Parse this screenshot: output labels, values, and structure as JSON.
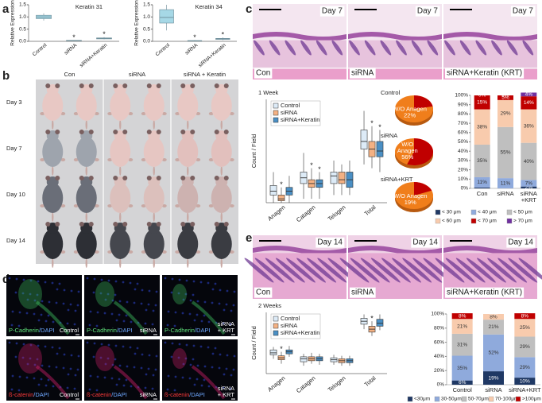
{
  "panel_labels": [
    "a",
    "b",
    "c",
    "d",
    "e"
  ],
  "a": [
    {
      "title": "Keratin 31",
      "ylabel": "Relative Expression",
      "ylim": [
        0,
        1.5
      ],
      "yticks": [
        {
          "value": 0,
          "label": "0.0"
        },
        {
          "value": 0.5,
          "label": "0.5"
        },
        {
          "value": 1,
          "label": "1.0"
        },
        {
          "value": 1.5,
          "label": "1.5"
        }
      ],
      "categories": [
        "Control",
        "siRNA",
        "siRNA+Keratin"
      ],
      "color": "#a6d8e6",
      "boxes": [
        {
          "stats": [
            0.85,
            0.93,
            1.0,
            1.07,
            1.15
          ]
        },
        {
          "stats": [
            0.01,
            0.02,
            0.03,
            0.04,
            0.05
          ],
          "note": "*"
        },
        {
          "stats": [
            0.08,
            0.1,
            0.12,
            0.14,
            0.17
          ],
          "note": "*"
        }
      ]
    },
    {
      "title": "Keratin 34",
      "ylabel": "Relative Expression",
      "ylim": [
        0,
        1.5
      ],
      "yticks": [
        {
          "value": 0,
          "label": "0.0"
        },
        {
          "value": 0.5,
          "label": "0.5"
        },
        {
          "value": 1,
          "label": "1.0"
        },
        {
          "value": 1.5,
          "label": "1.5"
        }
      ],
      "categories": [
        "Control",
        "siRNA",
        "siRNA+Keratin"
      ],
      "color": "#a6d8e6",
      "boxes": [
        {
          "stats": [
            0.45,
            0.75,
            0.98,
            1.3,
            1.5
          ]
        },
        {
          "stats": [
            0.0,
            0.01,
            0.02,
            0.03,
            0.05
          ],
          "note": "*"
        },
        {
          "stats": [
            0.05,
            0.08,
            0.1,
            0.12,
            0.16
          ],
          "note": "*"
        }
      ]
    }
  ],
  "b": {
    "columns": [
      "Con",
      "siRNA",
      "siRNA + Keratin"
    ],
    "rows": [
      "Day 3",
      "Day 7",
      "Day 10",
      "Day 14"
    ]
  },
  "c": {
    "images": [
      {
        "day": "Day 7",
        "label": "Con"
      },
      {
        "day": "Day 7",
        "label": "siRNA"
      },
      {
        "day": "Day 7",
        "label": "siRNA+Keratin (KRT)"
      }
    ],
    "boxplot": {
      "title": "1 Week",
      "ylabel": "Count / Field",
      "ylim": [
        0,
        27
      ],
      "categories": [
        "Anagen",
        "Catagen",
        "Telogen",
        "Total"
      ],
      "series": [
        {
          "name": "Control",
          "color": "#ddebf7",
          "boxes": [
            {
              "stats": [
                0,
                2,
                3,
                4.5,
                8
              ]
            },
            {
              "stats": [
                1,
                5,
                6.5,
                8,
                13
              ]
            },
            {
              "stats": [
                2,
                5,
                7,
                8,
                11
              ]
            },
            {
              "stats": [
                10,
                14,
                16,
                19,
                24
              ]
            }
          ]
        },
        {
          "name": "siRNA",
          "color": "#f4b183",
          "boxes": [
            {
              "stats": [
                0,
                0.5,
                1,
                2,
                4
              ],
              "note": "*"
            },
            {
              "stats": [
                1,
                4,
                5,
                6,
                9
              ],
              "note": "*"
            },
            {
              "stats": [
                2,
                5,
                6,
                8,
                10
              ]
            },
            {
              "stats": [
                9,
                12,
                14,
                16,
                20
              ],
              "note": "*"
            }
          ]
        },
        {
          "name": "siRNA+Keratin",
          "color": "#4a8fc4",
          "boxes": [
            {
              "stats": [
                0,
                2,
                3,
                4,
                7
              ]
            },
            {
              "stats": [
                1,
                4,
                5,
                6,
                8
              ],
              "note": "*"
            },
            {
              "stats": [
                2,
                4,
                6,
                8,
                11
              ]
            },
            {
              "stats": [
                8,
                12,
                13.5,
                16,
                19
              ],
              "note": "*"
            }
          ]
        }
      ]
    },
    "pie_color": "#f07e1b",
    "slice_color": "#c00000",
    "pies": [
      {
        "title": "Control",
        "label": [
          "W/O Anagen"
        ],
        "value": 22,
        "value_label": "22%"
      },
      {
        "title": "siRNA",
        "label": [
          "W/O",
          "Anagen"
        ],
        "value": 56,
        "value_label": "56%"
      },
      {
        "title": "siRNA+KRT",
        "label": [
          "W/O Anagen"
        ],
        "value": 19,
        "value_label": "19%"
      }
    ],
    "stacked": {
      "ylim": [
        0,
        100
      ],
      "yticks": [
        {
          "value": 0,
          "label": "0%"
        },
        {
          "value": 10,
          "label": "10%"
        },
        {
          "value": 20,
          "label": "20%"
        },
        {
          "value": 30,
          "label": "30%"
        },
        {
          "value": 40,
          "label": "40%"
        },
        {
          "value": 50,
          "label": "50%"
        },
        {
          "value": 60,
          "label": "60%"
        },
        {
          "value": 70,
          "label": "70%"
        },
        {
          "value": 80,
          "label": "80%"
        },
        {
          "value": 90,
          "label": "90%"
        },
        {
          "value": 100,
          "label": "100%"
        }
      ],
      "categories": [
        [
          "Con"
        ],
        [
          "siRNA"
        ],
        [
          "siRNA",
          "+KRT"
        ]
      ],
      "series": [
        {
          "name": "< 30 μm",
          "color": "#1f3864",
          "values": [
            1,
            0,
            2
          ],
          "value_labels": [
            null,
            null,
            "2%"
          ]
        },
        {
          "name": "< 40 μm",
          "color": "#8faadc",
          "values": [
            11,
            11,
            7
          ],
          "value_labels": [
            "11%",
            "11%",
            "7%"
          ]
        },
        {
          "name": "< 50 μm",
          "color": "#bfbfbf",
          "values": [
            35,
            55,
            40
          ],
          "value_labels": [
            "35%",
            "55%",
            "40%"
          ]
        },
        {
          "name": "< 60 μm",
          "color": "#f8cbad",
          "values": [
            38,
            29,
            36
          ],
          "value_labels": [
            "38%",
            "29%",
            "36%"
          ]
        },
        {
          "name": "< 70 μm",
          "color": "#c00000",
          "values": [
            15,
            5,
            14
          ],
          "value_labels": [
            "15%",
            "5%",
            "14%"
          ]
        },
        {
          "name": "> 70 μm",
          "color": "#7030a0",
          "values": [
            0,
            0,
            4
          ],
          "value_labels": [
            "0%",
            "0%",
            "4%"
          ]
        }
      ]
    }
  },
  "d": {
    "images": [
      {
        "stain": [
          "P-Cadherin",
          "/DAPI"
        ],
        "group": [
          "Control"
        ]
      },
      {
        "stain": [
          "P-Cadherin",
          "/DAPI"
        ],
        "group": [
          "siRNA"
        ]
      },
      {
        "stain": [
          "P-Cadherin",
          "/DAPI"
        ],
        "group": [
          "siRNA",
          "+ KRT"
        ]
      },
      {
        "stain": [
          "ß-catenin",
          "/DAPI"
        ],
        "group": [
          "Control"
        ]
      },
      {
        "stain": [
          "ß-catenin",
          "/DAPI"
        ],
        "group": [
          "siRNA"
        ]
      },
      {
        "stain": [
          "ß-catenin",
          "/DAPI"
        ],
        "group": [
          "siRNA",
          "+ KRT"
        ]
      }
    ]
  },
  "e": {
    "images": [
      {
        "day": "Day 14",
        "label": "Con"
      },
      {
        "day": "Day 14",
        "label": "siRNA"
      },
      {
        "day": "Day 14",
        "label": "siRNA+Keratin (KRT)"
      }
    ],
    "boxplot": {
      "title": "2 Weeks",
      "ylabel": "Count / Field",
      "ylim": [
        0,
        62
      ],
      "categories": [
        "Anagen",
        "Catagen",
        "Telogen",
        "Total"
      ],
      "series": [
        {
          "name": "Control",
          "color": "#ddebf7",
          "boxes": [
            {
              "stats": [
                15,
                19,
                21,
                24,
                27
              ]
            },
            {
              "stats": [
                8,
                12,
                15,
                17,
                20
              ]
            },
            {
              "stats": [
                9,
                12,
                14,
                16,
                19
              ]
            },
            {
              "stats": [
                45,
                50,
                53,
                56,
                60
              ]
            }
          ]
        },
        {
          "name": "siRNA",
          "color": "#f4b183",
          "boxes": [
            {
              "stats": [
                10,
                14,
                16,
                18,
                22
              ],
              "note": "*"
            },
            {
              "stats": [
                10,
                13,
                15,
                17,
                21
              ]
            },
            {
              "stats": [
                8,
                11,
                13,
                15,
                18
              ]
            },
            {
              "stats": [
                38,
                42,
                45,
                48,
                53
              ],
              "note": "*"
            }
          ]
        },
        {
          "name": "siRNA+Keratin",
          "color": "#4a8fc4",
          "boxes": [
            {
              "stats": [
                17,
                20,
                22,
                24,
                28
              ]
            },
            {
              "stats": [
                9,
                13,
                15,
                17,
                20
              ]
            },
            {
              "stats": [
                8,
                11,
                13,
                15,
                18
              ]
            },
            {
              "stats": [
                44,
                48,
                51,
                55,
                60
              ]
            }
          ]
        }
      ]
    },
    "stacked": {
      "ylim": [
        0,
        100
      ],
      "yticks": [
        {
          "value": 0,
          "label": "0%"
        },
        {
          "value": 20,
          "label": "20%"
        },
        {
          "value": 40,
          "label": "40%"
        },
        {
          "value": 60,
          "label": "60%"
        },
        {
          "value": 80,
          "label": "80%"
        },
        {
          "value": 100,
          "label": "100%"
        }
      ],
      "categories": [
        [
          "Control"
        ],
        [
          "siRNA"
        ],
        [
          "siRNA+KRT"
        ]
      ],
      "series": [
        {
          "name": "<30μm",
          "color": "#1f3864",
          "values": [
            6,
            19,
            10
          ],
          "value_labels": [
            "6%",
            "19%",
            "10%"
          ]
        },
        {
          "name": "30-50μm",
          "color": "#8faadc",
          "values": [
            35,
            52,
            29
          ],
          "value_labels": [
            "35%",
            "52%",
            "29%"
          ]
        },
        {
          "name": "50-70μm",
          "color": "#bfbfbf",
          "values": [
            31,
            21,
            29
          ],
          "value_labels": [
            "31%",
            "21%",
            "29%"
          ]
        },
        {
          "name": "70-100μm",
          "color": "#f8cbad",
          "values": [
            21,
            8,
            25
          ],
          "value_labels": [
            "21%",
            "8%",
            "25%"
          ]
        },
        {
          "name": ">100μm",
          "color": "#c00000",
          "values": [
            8,
            0,
            8
          ],
          "value_labels": [
            "8%",
            "0%",
            "8%"
          ]
        }
      ]
    }
  }
}
